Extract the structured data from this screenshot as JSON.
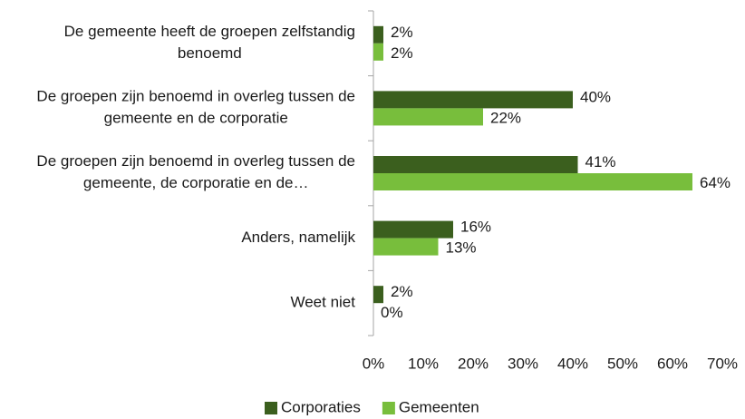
{
  "chart_data": {
    "type": "hbar",
    "categories": [
      "De gemeente heeft de groepen zelfstandig benoemd",
      "De groepen zijn benoemd in overleg tussen de gemeente en de corporatie",
      "De groepen zijn benoemd in overleg tussen de gemeente, de corporatie en de…",
      "Anders, namelijk",
      "Weet niet"
    ],
    "series": [
      {
        "name": "Corporaties",
        "color": "#3b5f1e",
        "values": [
          2,
          40,
          41,
          16,
          2
        ],
        "value_labels": [
          "2%",
          "40%",
          "41%",
          "16%",
          "2%"
        ]
      },
      {
        "name": "Gemeenten",
        "color": "#78be3c",
        "values": [
          2,
          22,
          64,
          13,
          0
        ],
        "value_labels": [
          "2%",
          "22%",
          "64%",
          "13%",
          "0%"
        ]
      }
    ],
    "xlim": [
      0,
      70
    ],
    "xticks": [
      {
        "value": 0,
        "label": "0%"
      },
      {
        "value": 10,
        "label": "10%"
      },
      {
        "value": 20,
        "label": "20%"
      },
      {
        "value": 30,
        "label": "30%"
      },
      {
        "value": 40,
        "label": "40%"
      },
      {
        "value": 50,
        "label": "50%"
      },
      {
        "value": 60,
        "label": "60%"
      },
      {
        "value": 70,
        "label": "70%"
      }
    ],
    "legend": "bottom",
    "grid": false
  }
}
